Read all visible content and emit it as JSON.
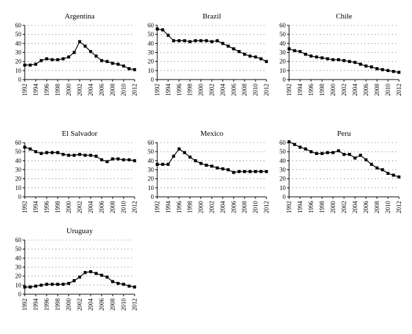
{
  "chart_data": [
    {
      "type": "line",
      "title": "Argentina",
      "x": [
        1992,
        1993,
        1994,
        1995,
        1996,
        1997,
        1998,
        1999,
        2000,
        2001,
        2002,
        2003,
        2004,
        2005,
        2006,
        2007,
        2008,
        2009,
        2010,
        2011,
        2012
      ],
      "values": [
        16,
        16,
        17,
        21,
        23,
        22,
        22,
        23,
        25,
        30,
        42,
        37,
        31,
        26,
        21,
        20,
        18,
        17,
        15,
        12,
        11
      ],
      "xlabel": "",
      "ylabel": "",
      "ylim": [
        0,
        60
      ],
      "y_ticks": [
        0,
        10,
        20,
        30,
        40,
        50,
        60
      ],
      "x_ticks": [
        1992,
        1994,
        1996,
        1998,
        2000,
        2002,
        2004,
        2006,
        2008,
        2010,
        2012
      ],
      "grid": "dotted horizontal",
      "marker": "square",
      "color": "#000000"
    },
    {
      "type": "line",
      "title": "Brazil",
      "x": [
        1992,
        1993,
        1994,
        1995,
        1996,
        1997,
        1998,
        1999,
        2000,
        2001,
        2002,
        2003,
        2004,
        2005,
        2006,
        2007,
        2008,
        2009,
        2010,
        2011,
        2012
      ],
      "values": [
        56,
        55,
        49,
        43,
        43,
        43,
        42,
        43,
        43,
        43,
        42,
        43,
        40,
        37,
        34,
        31,
        28,
        26,
        25,
        23,
        20
      ],
      "xlabel": "",
      "ylabel": "",
      "ylim": [
        0,
        60
      ],
      "y_ticks": [
        0,
        10,
        20,
        30,
        40,
        50,
        60
      ],
      "x_ticks": [
        1992,
        1994,
        1996,
        1998,
        2000,
        2002,
        2004,
        2006,
        2008,
        2010,
        2012
      ],
      "grid": "dotted horizontal",
      "marker": "square",
      "color": "#000000"
    },
    {
      "type": "line",
      "title": "Chile",
      "x": [
        1992,
        1993,
        1994,
        1995,
        1996,
        1997,
        1998,
        1999,
        2000,
        2001,
        2002,
        2003,
        2004,
        2005,
        2006,
        2007,
        2008,
        2009,
        2010,
        2011,
        2012
      ],
      "values": [
        34,
        32,
        31,
        28,
        26,
        25,
        24,
        23,
        22,
        22,
        21,
        20,
        19,
        17,
        15,
        14,
        12,
        11,
        10,
        9,
        8
      ],
      "xlabel": "",
      "ylabel": "",
      "ylim": [
        0,
        60
      ],
      "y_ticks": [
        0,
        10,
        20,
        30,
        40,
        50,
        60
      ],
      "x_ticks": [
        1992,
        1994,
        1996,
        1998,
        2000,
        2002,
        2004,
        2006,
        2008,
        2010,
        2012
      ],
      "grid": "dotted horizontal",
      "marker": "square",
      "color": "#000000"
    },
    {
      "type": "line",
      "title": "El Salvador",
      "x": [
        1992,
        1993,
        1994,
        1995,
        1996,
        1997,
        1998,
        1999,
        2000,
        2001,
        2002,
        2003,
        2004,
        2005,
        2006,
        2007,
        2008,
        2009,
        2010,
        2011,
        2012
      ],
      "values": [
        55,
        53,
        50,
        48,
        49,
        49,
        49,
        47,
        46,
        46,
        47,
        46,
        46,
        45,
        41,
        39,
        42,
        42,
        41,
        41,
        40
      ],
      "xlabel": "",
      "ylabel": "",
      "ylim": [
        0,
        60
      ],
      "y_ticks": [
        0,
        10,
        20,
        30,
        40,
        50,
        60
      ],
      "x_ticks": [
        1992,
        1994,
        1996,
        1998,
        2000,
        2002,
        2004,
        2006,
        2008,
        2010,
        2012
      ],
      "grid": "dotted horizontal",
      "marker": "square",
      "color": "#000000"
    },
    {
      "type": "line",
      "title": "Mexico",
      "x": [
        1992,
        1993,
        1994,
        1995,
        1996,
        1997,
        1998,
        1999,
        2000,
        2001,
        2002,
        2003,
        2004,
        2005,
        2006,
        2007,
        2008,
        2009,
        2010,
        2011,
        2012
      ],
      "values": [
        36,
        36,
        36,
        45,
        53,
        49,
        44,
        40,
        37,
        35,
        34,
        32,
        31,
        30,
        27,
        28,
        28,
        28,
        28,
        28,
        28
      ],
      "xlabel": "",
      "ylabel": "",
      "ylim": [
        0,
        60
      ],
      "y_ticks": [
        0,
        10,
        20,
        30,
        40,
        50,
        60
      ],
      "x_ticks": [
        1992,
        1994,
        1996,
        1998,
        2000,
        2002,
        2004,
        2006,
        2008,
        2010,
        2012
      ],
      "grid": "dotted horizontal",
      "marker": "square",
      "color": "#000000"
    },
    {
      "type": "line",
      "title": "Peru",
      "x": [
        1992,
        1993,
        1994,
        1995,
        1996,
        1997,
        1998,
        1999,
        2000,
        2001,
        2002,
        2003,
        2004,
        2005,
        2006,
        2007,
        2008,
        2009,
        2010,
        2011,
        2012
      ],
      "values": [
        61,
        58,
        55,
        53,
        50,
        48,
        48,
        49,
        49,
        51,
        47,
        47,
        43,
        46,
        41,
        36,
        32,
        30,
        26,
        24,
        22
      ],
      "xlabel": "",
      "ylabel": "",
      "ylim": [
        0,
        60
      ],
      "y_ticks": [
        0,
        10,
        20,
        30,
        40,
        50,
        60
      ],
      "x_ticks": [
        1992,
        1994,
        1996,
        1998,
        2000,
        2002,
        2004,
        2006,
        2008,
        2010,
        2012
      ],
      "grid": "dotted horizontal",
      "marker": "square",
      "color": "#000000"
    },
    {
      "type": "line",
      "title": "Uruguay",
      "x": [
        1992,
        1993,
        1994,
        1995,
        1996,
        1997,
        1998,
        1999,
        2000,
        2001,
        2002,
        2003,
        2004,
        2005,
        2006,
        2007,
        2008,
        2009,
        2010,
        2011,
        2012
      ],
      "values": [
        8,
        8,
        9,
        10,
        11,
        11,
        11,
        11,
        12,
        15,
        19,
        24,
        25,
        23,
        21,
        19,
        14,
        12,
        11,
        9,
        8
      ],
      "xlabel": "",
      "ylabel": "",
      "ylim": [
        0,
        60
      ],
      "y_ticks": [
        0,
        10,
        20,
        30,
        40,
        50,
        60
      ],
      "x_ticks": [
        1992,
        1994,
        1996,
        1998,
        2000,
        2002,
        2004,
        2006,
        2008,
        2010,
        2012
      ],
      "grid": "dotted horizontal",
      "marker": "square",
      "color": "#000000"
    }
  ]
}
